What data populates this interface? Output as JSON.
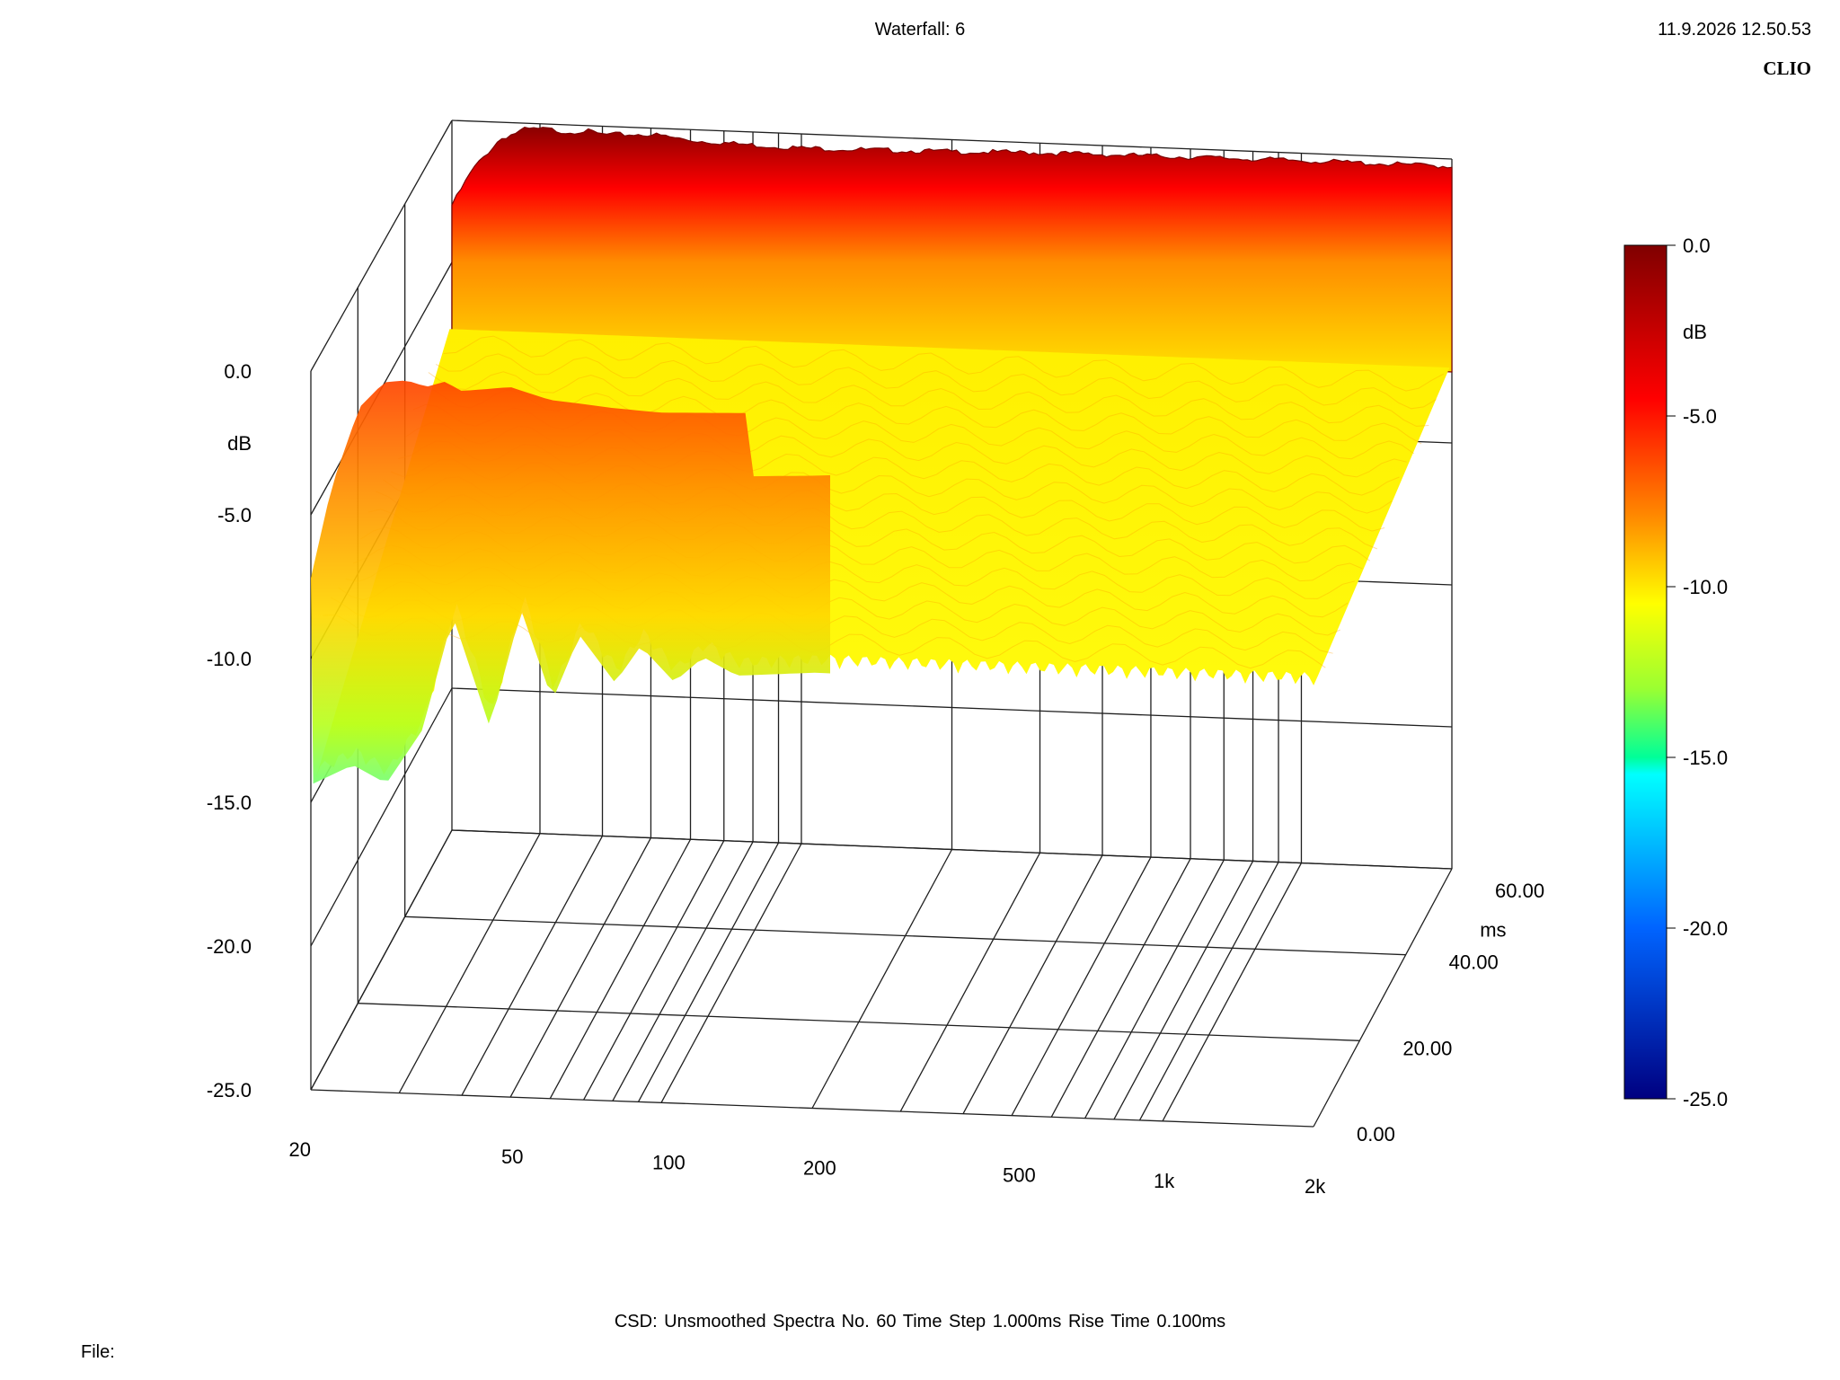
{
  "header": {
    "title": "Waterfall: 6",
    "timestamp": "11.9.2026 12.50.53",
    "brand": "CLIO"
  },
  "footer": {
    "info": "CSD:   Unsmoothed   Spectra No. 60   Time Step 1.000ms   Rise Time 0.100ms",
    "file_label": "File:"
  },
  "chart_data": {
    "type": "waterfall",
    "x_axis": {
      "ticks": [
        20,
        50,
        100,
        200,
        500,
        1000,
        2000
      ],
      "tick_labels": [
        "20",
        "50",
        "100",
        "200",
        "500",
        "1k",
        "2k"
      ],
      "scale": "log",
      "range": [
        20,
        2000
      ]
    },
    "z_axis": {
      "ticks": [
        0,
        20,
        40,
        60
      ],
      "tick_labels": [
        "0.00",
        "20.00",
        "40.00",
        "60.00"
      ],
      "label": "ms",
      "range": [
        0,
        60
      ]
    },
    "y_axis": {
      "ticks": [
        0,
        -5,
        -10,
        -15,
        -20,
        -25
      ],
      "tick_labels": [
        "0.0",
        "-5.0",
        "-10.0",
        "-15.0",
        "-20.0",
        "-25.0"
      ],
      "label": "dB",
      "range": [
        -25,
        0
      ]
    },
    "colorbar": {
      "ticks": [
        0,
        -5,
        -10,
        -15,
        -20,
        -25
      ],
      "tick_labels": [
        "0.0",
        "-5.0",
        "-10.0",
        "-15.0",
        "-20.0",
        "-25.0"
      ],
      "label": "dB",
      "range": [
        -25,
        0
      ],
      "colors": [
        "#800000",
        "#ff0000",
        "#ff8c00",
        "#ffff00",
        "#9aff32",
        "#00ffff",
        "#0064ff",
        "#000080"
      ]
    },
    "spectra_count": 60,
    "surface": {
      "front_profile_db": [
        [
          20,
          -7.2
        ],
        [
          22,
          -4.0
        ],
        [
          25,
          -1.2
        ],
        [
          28,
          -0.3
        ],
        [
          31,
          -0.2
        ],
        [
          34,
          -0.4
        ],
        [
          37,
          -0.2
        ],
        [
          40,
          -0.5
        ],
        [
          45,
          -0.4
        ],
        [
          50,
          -0.3
        ],
        [
          60,
          -0.7
        ],
        [
          70,
          -0.8
        ],
        [
          80,
          -0.9
        ],
        [
          100,
          -1.0
        ],
        [
          150,
          -0.9
        ],
        [
          200,
          -0.8
        ],
        [
          300,
          -0.6
        ],
        [
          500,
          -0.5
        ],
        [
          1000,
          -0.4
        ],
        [
          2000,
          -0.4
        ]
      ],
      "back_floor_db": -10.0,
      "low_freq_dips_db": [
        [
          20,
          -14.5
        ],
        [
          24,
          -13.8
        ],
        [
          28,
          -14.4
        ],
        [
          33,
          -12.5
        ],
        [
          38,
          -8.5
        ],
        [
          45,
          -12.3
        ],
        [
          52,
          -8.2
        ],
        [
          60,
          -11.3
        ],
        [
          68,
          -9.0
        ],
        [
          80,
          -10.6
        ],
        [
          90,
          -9.3
        ],
        [
          105,
          -10.5
        ],
        [
          120,
          -9.6
        ],
        [
          140,
          -10.2
        ],
        [
          200,
          -10.0
        ],
        [
          2000,
          -10.0
        ]
      ]
    }
  }
}
